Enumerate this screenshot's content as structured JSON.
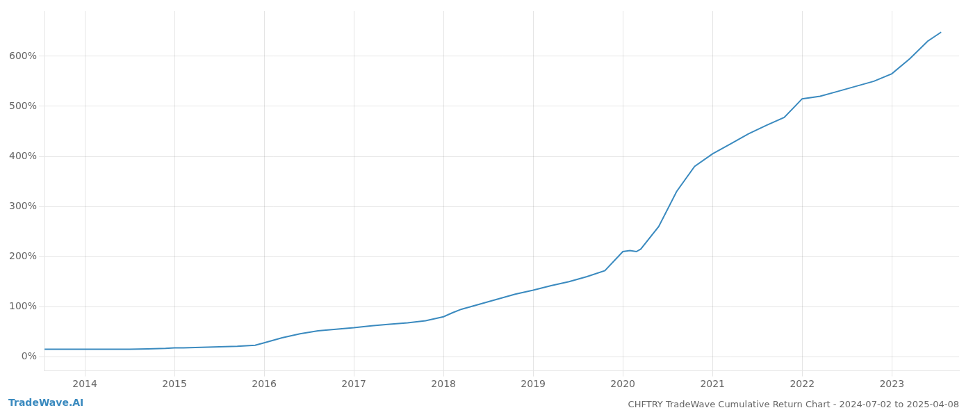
{
  "chart_data": {
    "type": "line",
    "title": "CHFTRY TradeWave Cumulative Return Chart - 2024-07-02 to 2025-04-08",
    "annotations": [
      "TradeWave.AI"
    ],
    "color": "#3a8abf",
    "grid": true,
    "x": [
      2013.55,
      2014.0,
      2014.1,
      2014.3,
      2014.5,
      2014.7,
      2014.9,
      2015.0,
      2015.1,
      2015.3,
      2015.5,
      2015.7,
      2015.9,
      2016.0,
      2016.2,
      2016.4,
      2016.6,
      2016.8,
      2017.0,
      2017.2,
      2017.4,
      2017.6,
      2017.8,
      2018.0,
      2018.1,
      2018.2,
      2018.4,
      2018.6,
      2018.8,
      2019.0,
      2019.2,
      2019.4,
      2019.6,
      2019.8,
      2020.0,
      2020.08,
      2020.15,
      2020.2,
      2020.4,
      2020.6,
      2020.8,
      2021.0,
      2021.2,
      2021.4,
      2021.6,
      2021.8,
      2022.0,
      2022.2,
      2022.4,
      2022.6,
      2022.8,
      2023.0,
      2023.2,
      2023.4,
      2023.55
    ],
    "values": [
      15,
      15,
      15,
      15,
      15,
      16,
      17,
      18,
      18,
      19,
      20,
      21,
      23,
      28,
      38,
      46,
      52,
      55,
      58,
      62,
      65,
      68,
      72,
      80,
      88,
      95,
      105,
      115,
      125,
      133,
      142,
      150,
      160,
      172,
      210,
      212,
      210,
      215,
      260,
      330,
      380,
      405,
      425,
      445,
      462,
      478,
      515,
      520,
      530,
      540,
      550,
      565,
      595,
      630,
      648
    ],
    "xlim": [
      2013.55,
      2023.75
    ],
    "xticks": [
      2014,
      2015,
      2016,
      2017,
      2018,
      2019,
      2020,
      2021,
      2022,
      2023
    ],
    "ylim": [
      -28,
      690
    ],
    "yticks": [
      {
        "value": 0,
        "label": "0%"
      },
      {
        "value": 100,
        "label": "100%"
      },
      {
        "value": 200,
        "label": "200%"
      },
      {
        "value": 300,
        "label": "300%"
      },
      {
        "value": 400,
        "label": "400%"
      },
      {
        "value": 500,
        "label": "500%"
      },
      {
        "value": 600,
        "label": "600%"
      }
    ]
  }
}
